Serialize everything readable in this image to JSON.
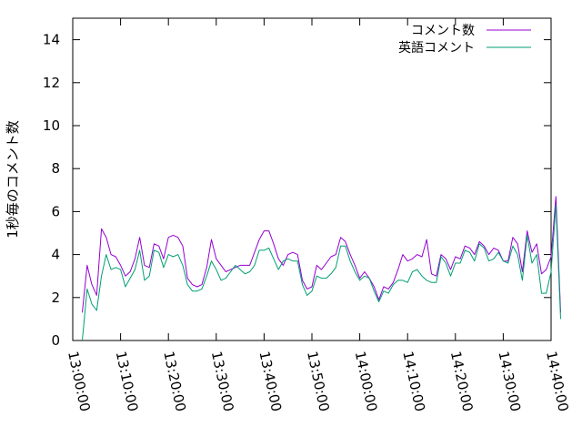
{
  "chart_data": {
    "type": "line",
    "title": "",
    "xlabel": "",
    "ylabel": "1秒毎のコメント数",
    "ylim": [
      0,
      15
    ],
    "yticks": [
      0,
      2,
      4,
      6,
      8,
      10,
      12,
      14
    ],
    "x_tick_labels": [
      "13:00:00",
      "13:10:00",
      "13:20:00",
      "13:30:00",
      "13:40:00",
      "13:50:00",
      "14:00:00",
      "14:10:00",
      "14:20:00",
      "14:30:00",
      "14:40:00"
    ],
    "x_start": "13:00:00",
    "x_step_seconds": 60,
    "legend": "top-right",
    "grid": false,
    "series": [
      {
        "name": "コメント数",
        "color": "#9400d3",
        "values": [
          1.3,
          3.5,
          2.6,
          2.1,
          5.2,
          4.8,
          4.0,
          3.9,
          3.5,
          3.0,
          3.2,
          3.8,
          4.8,
          3.5,
          3.4,
          4.5,
          4.4,
          3.8,
          4.8,
          4.9,
          4.8,
          4.4,
          2.9,
          2.6,
          2.5,
          2.6,
          3.4,
          4.7,
          3.8,
          3.5,
          3.2,
          3.3,
          3.4,
          3.5,
          3.5,
          3.5,
          4.1,
          4.7,
          5.1,
          5.1,
          4.5,
          3.8,
          3.5,
          4.0,
          4.1,
          4.0,
          2.8,
          2.4,
          2.5,
          3.5,
          3.3,
          3.6,
          3.9,
          4.0,
          4.8,
          4.6,
          4.0,
          3.5,
          2.9,
          3.2,
          2.9,
          2.5,
          1.9,
          2.5,
          2.4,
          2.7,
          3.3,
          4.0,
          3.7,
          3.8,
          4.0,
          3.9,
          4.7,
          3.1,
          3.0,
          4.0,
          3.8,
          3.3,
          3.9,
          3.8,
          4.4,
          4.3,
          4.0,
          4.6,
          4.4,
          4.0,
          4.3,
          4.2,
          3.7,
          3.7,
          4.8,
          4.5,
          3.2,
          5.1,
          4.1,
          4.5,
          3.1,
          3.3,
          3.9,
          6.7,
          1.3
        ]
      },
      {
        "name": "英語コメント",
        "color": "#009e73",
        "values": [
          0,
          2.4,
          1.7,
          1.4,
          3.0,
          4.0,
          3.3,
          3.4,
          3.3,
          2.5,
          2.9,
          3.3,
          4.2,
          2.8,
          3.0,
          4.2,
          4.1,
          3.4,
          4.0,
          3.9,
          4.0,
          3.5,
          2.6,
          2.3,
          2.3,
          2.4,
          3.0,
          3.7,
          3.3,
          2.8,
          2.9,
          3.2,
          3.5,
          3.3,
          3.1,
          3.2,
          3.5,
          4.2,
          4.2,
          4.3,
          3.8,
          3.3,
          3.7,
          3.8,
          3.7,
          3.7,
          2.6,
          2.1,
          2.3,
          3.0,
          2.9,
          2.9,
          3.1,
          3.4,
          4.4,
          4.4,
          3.7,
          3.2,
          2.8,
          3.0,
          2.9,
          2.3,
          1.8,
          2.3,
          2.2,
          2.6,
          2.8,
          2.8,
          2.7,
          3.2,
          3.3,
          3.0,
          2.8,
          2.7,
          2.7,
          3.9,
          3.6,
          3.0,
          3.6,
          3.6,
          4.2,
          4.1,
          3.7,
          4.5,
          4.3,
          3.7,
          3.8,
          4.1,
          3.7,
          3.6,
          4.4,
          4.0,
          2.8,
          4.9,
          3.6,
          4.0,
          2.2,
          2.2,
          3.2,
          6.3,
          1.0
        ]
      }
    ]
  }
}
